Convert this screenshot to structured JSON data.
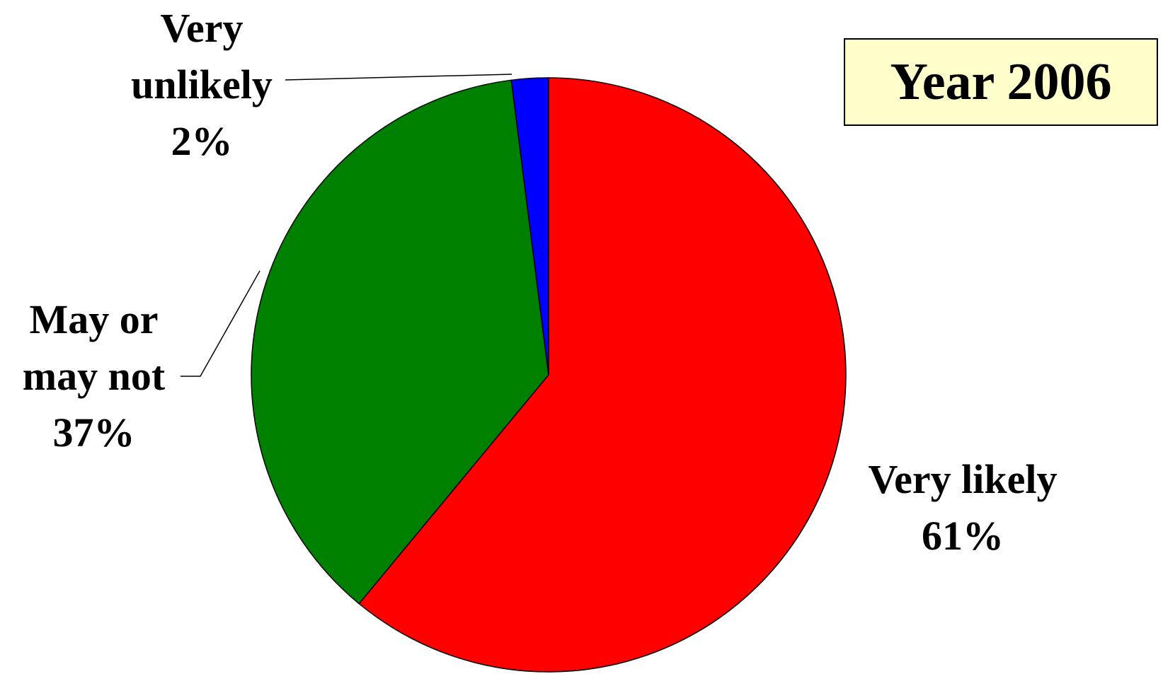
{
  "chart_data": {
    "type": "pie",
    "title": "Year 2006",
    "categories": [
      "Very likely",
      "May or may not",
      "Very unlikely"
    ],
    "values": [
      61,
      37,
      2
    ],
    "value_labels": [
      "61%",
      "37%",
      "2%"
    ],
    "colors": [
      "#ff0000",
      "#008000",
      "#0000ff"
    ]
  }
}
